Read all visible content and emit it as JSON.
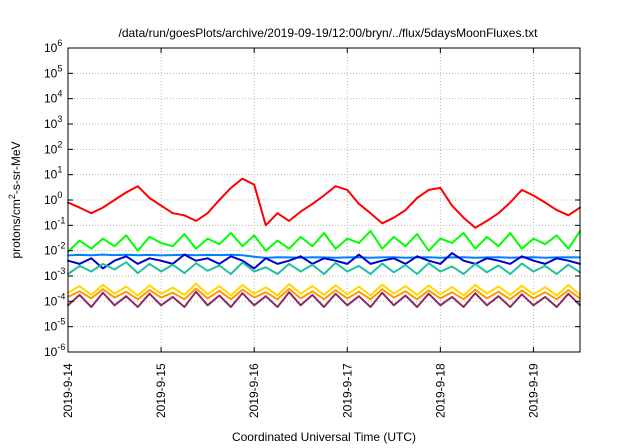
{
  "chart_data": {
    "type": "line",
    "title": "/data/run/goesPlots/archive/2019-09-19/12:00/bryn/../flux/5daysMoonFluxes.txt",
    "xlabel": "Coordinated Universal Time (UTC)",
    "ylabel": {
      "prefix": "protons/cm",
      "superscript": "2",
      "suffix": "-s-sr-MeV"
    },
    "yscale": "log",
    "xlim": [
      "2019-09-14T00:00",
      "2019-09-19T12:00"
    ],
    "ylim": [
      1e-06,
      1000000.0
    ],
    "grid": true,
    "x_ticks": [
      "2019-9-14",
      "2019-9-15",
      "2019-9-16",
      "2019-9-17",
      "2019-9-18",
      "2019-9-19"
    ],
    "y_ticks": [
      {
        "base": "10",
        "exp": "-6"
      },
      {
        "base": "10",
        "exp": "-5"
      },
      {
        "base": "10",
        "exp": "-4"
      },
      {
        "base": "10",
        "exp": "-3"
      },
      {
        "base": "10",
        "exp": "-2"
      },
      {
        "base": "10",
        "exp": "-1"
      },
      {
        "base": "10",
        "exp": "0"
      },
      {
        "base": "10",
        "exp": "1"
      },
      {
        "base": "10",
        "exp": "2"
      },
      {
        "base": "10",
        "exp": "3"
      },
      {
        "base": "10",
        "exp": "4"
      },
      {
        "base": "10",
        "exp": "5"
      },
      {
        "base": "10",
        "exp": "6"
      }
    ],
    "x": [
      "2019-09-14T00:00",
      "2019-09-14T03:00",
      "2019-09-14T06:00",
      "2019-09-14T09:00",
      "2019-09-14T12:00",
      "2019-09-14T15:00",
      "2019-09-14T18:00",
      "2019-09-14T21:00",
      "2019-09-15T00:00",
      "2019-09-15T03:00",
      "2019-09-15T06:00",
      "2019-09-15T09:00",
      "2019-09-15T12:00",
      "2019-09-15T15:00",
      "2019-09-15T18:00",
      "2019-09-15T21:00",
      "2019-09-16T00:00",
      "2019-09-16T03:00",
      "2019-09-16T06:00",
      "2019-09-16T09:00",
      "2019-09-16T12:00",
      "2019-09-16T15:00",
      "2019-09-16T18:00",
      "2019-09-16T21:00",
      "2019-09-17T00:00",
      "2019-09-17T03:00",
      "2019-09-17T06:00",
      "2019-09-17T09:00",
      "2019-09-17T12:00",
      "2019-09-17T15:00",
      "2019-09-17T18:00",
      "2019-09-17T21:00",
      "2019-09-18T00:00",
      "2019-09-18T03:00",
      "2019-09-18T06:00",
      "2019-09-18T09:00",
      "2019-09-18T12:00",
      "2019-09-18T15:00",
      "2019-09-18T18:00",
      "2019-09-18T21:00",
      "2019-09-19T00:00",
      "2019-09-19T03:00",
      "2019-09-19T06:00",
      "2019-09-19T09:00",
      "2019-09-19T12:00"
    ],
    "series": [
      {
        "color": "#ff0000",
        "values": [
          0.8,
          0.5,
          0.3,
          0.5,
          1.0,
          2.0,
          3.5,
          1.2,
          0.6,
          0.3,
          0.25,
          0.15,
          0.3,
          1.0,
          3.0,
          7.0,
          4.0,
          0.1,
          0.3,
          0.15,
          0.35,
          0.7,
          1.5,
          3.5,
          2.5,
          0.7,
          0.3,
          0.12,
          0.2,
          0.4,
          1.2,
          2.5,
          3.0,
          0.6,
          0.2,
          0.08,
          0.15,
          0.3,
          0.8,
          2.5,
          1.5,
          0.8,
          0.4,
          0.25,
          0.5
        ]
      },
      {
        "color": "#00ff00",
        "values": [
          0.009,
          0.025,
          0.012,
          0.03,
          0.015,
          0.04,
          0.01,
          0.035,
          0.02,
          0.015,
          0.045,
          0.012,
          0.03,
          0.018,
          0.05,
          0.015,
          0.04,
          0.01,
          0.025,
          0.012,
          0.035,
          0.015,
          0.05,
          0.012,
          0.03,
          0.02,
          0.06,
          0.012,
          0.035,
          0.015,
          0.045,
          0.01,
          0.03,
          0.02,
          0.05,
          0.012,
          0.035,
          0.015,
          0.05,
          0.012,
          0.03,
          0.018,
          0.04,
          0.012,
          0.06
        ]
      },
      {
        "color": "#0080ff",
        "values": [
          0.0065,
          0.0068,
          0.0066,
          0.007,
          0.0067,
          0.0069,
          0.0066,
          0.0068,
          0.0065,
          0.0067,
          0.0069,
          0.0066,
          0.0068,
          0.0067,
          0.0069,
          0.0066,
          0.0058,
          0.0052,
          0.0055,
          0.0054,
          0.0053,
          0.0055,
          0.0054,
          0.0053,
          0.0054,
          0.0055,
          0.0053,
          0.0054,
          0.0055,
          0.0053,
          0.0054,
          0.0055,
          0.0053,
          0.0054,
          0.0055,
          0.0053,
          0.0054,
          0.0055,
          0.0053,
          0.0054,
          0.0055,
          0.0053,
          0.0054,
          0.0055,
          0.0054
        ]
      },
      {
        "color": "#0000cc",
        "values": [
          0.004,
          0.003,
          0.005,
          0.002,
          0.004,
          0.006,
          0.003,
          0.005,
          0.004,
          0.003,
          0.007,
          0.004,
          0.005,
          0.003,
          0.006,
          0.004,
          0.002,
          0.005,
          0.003,
          0.004,
          0.006,
          0.003,
          0.005,
          0.004,
          0.003,
          0.007,
          0.003,
          0.004,
          0.005,
          0.003,
          0.006,
          0.004,
          0.003,
          0.008,
          0.004,
          0.003,
          0.005,
          0.004,
          0.003,
          0.006,
          0.004,
          0.003,
          0.005,
          0.004,
          0.003
        ]
      },
      {
        "color": "#20c0a0",
        "values": [
          0.0012,
          0.0025,
          0.0015,
          0.003,
          0.0018,
          0.0035,
          0.0013,
          0.003,
          0.0015,
          0.0028,
          0.0013,
          0.0032,
          0.0016,
          0.0026,
          0.0012,
          0.0034,
          0.0015,
          0.0022,
          0.0012,
          0.003,
          0.0015,
          0.0028,
          0.0012,
          0.0033,
          0.0015,
          0.0025,
          0.0012,
          0.0031,
          0.0014,
          0.0027,
          0.0012,
          0.0032,
          0.0015,
          0.0024,
          0.0012,
          0.003,
          0.0014,
          0.0026,
          0.0012,
          0.0031,
          0.0015,
          0.0025,
          0.0012,
          0.0028,
          0.0014
        ]
      },
      {
        "color": "#ffd700",
        "values": [
          0.00022,
          0.0004,
          0.00018,
          0.00045,
          0.0002,
          0.00038,
          0.00017,
          0.00042,
          0.0002,
          0.00035,
          0.00018,
          0.0005,
          0.00019,
          0.0004,
          0.00017,
          0.00044,
          0.0002,
          0.00036,
          0.00017,
          0.00048,
          0.0002,
          0.0004,
          0.00018,
          0.00043,
          0.00019,
          0.00038,
          0.00017,
          0.00046,
          0.0002,
          0.0004,
          0.00018,
          0.00042,
          0.00019,
          0.00037,
          0.00017,
          0.00045,
          0.0002,
          0.00039,
          0.00018,
          0.00041,
          0.00019,
          0.00036,
          0.00017,
          0.00044,
          0.00018
        ]
      },
      {
        "color": "#ff9900",
        "values": [
          0.00015,
          0.00025,
          0.00013,
          0.0003,
          0.00014,
          0.00024,
          0.00012,
          0.00028,
          0.00014,
          0.00022,
          0.00012,
          0.00032,
          0.00013,
          0.00026,
          0.00012,
          0.00029,
          0.00014,
          0.00023,
          0.00012,
          0.00031,
          0.00013,
          0.00025,
          0.00012,
          0.00028,
          0.00013,
          0.00024,
          0.00012,
          0.0003,
          0.00014,
          0.00025,
          0.00012,
          0.00027,
          0.00013,
          0.00023,
          0.00012,
          0.00029,
          0.00013,
          0.00024,
          0.00012,
          0.00027,
          0.00013,
          0.00023,
          0.00012,
          0.00028,
          0.00013
        ]
      },
      {
        "color": "#8b2a6b",
        "values": [
          7e-05,
          0.00018,
          6e-05,
          0.00022,
          7e-05,
          0.00016,
          6e-05,
          0.0002,
          7e-05,
          0.00015,
          6e-05,
          0.00024,
          7e-05,
          0.00017,
          6e-05,
          0.00021,
          7e-05,
          0.00016,
          6e-05,
          0.00023,
          7e-05,
          0.00018,
          6e-05,
          0.0002,
          7e-05,
          0.00016,
          6e-05,
          0.00022,
          7e-05,
          0.00017,
          6e-05,
          0.0002,
          7e-05,
          0.00015,
          6e-05,
          0.00021,
          7e-05,
          0.00016,
          6e-05,
          0.00019,
          7e-05,
          0.00015,
          6e-05,
          0.0002,
          7e-05
        ]
      }
    ]
  }
}
